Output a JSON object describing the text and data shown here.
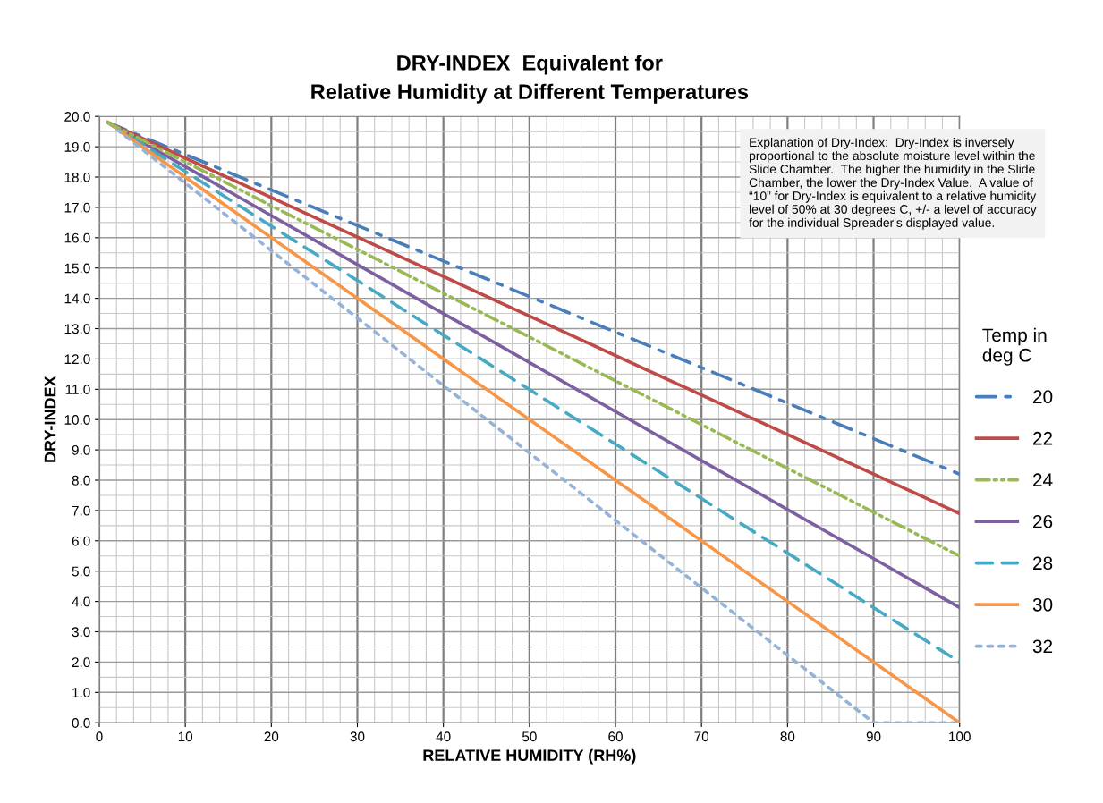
{
  "chart_data": {
    "type": "line",
    "title": "DRY-INDEX  Equivalent for\nRelative Humidity at Different Temperatures",
    "xlabel": "RELATIVE HUMIDITY (RH%)",
    "ylabel": "DRY-INDEX",
    "legend_title": "Temp in\ndeg C",
    "annotations": [
      "Explanation of Dry-Index:  Dry-Index is inversely proportional to the absolute moisture level within the Slide Chamber.  The higher the humidity in the Slide Chamber, the lower the Dry-Index Value.  A value of “10” for Dry-Index is equivalent to a relative humidity level of 50% at 30 degrees C, +/- a level of accuracy for the individual Spreader's displayed value."
    ],
    "series": [
      {
        "name": "20",
        "color": "#4a7ebb",
        "line_style": "dashdot",
        "x": [
          1,
          100
        ],
        "values": [
          19.8,
          8.2
        ]
      },
      {
        "name": "22",
        "color": "#be4b48",
        "line_style": "solid",
        "x": [
          1,
          100
        ],
        "values": [
          19.8,
          6.9
        ]
      },
      {
        "name": "24",
        "color": "#98b954",
        "line_style": "dashdotdot",
        "x": [
          1,
          100
        ],
        "values": [
          19.8,
          5.5
        ]
      },
      {
        "name": "26",
        "color": "#7d60a0",
        "line_style": "solid",
        "x": [
          1,
          100
        ],
        "values": [
          19.8,
          3.8
        ]
      },
      {
        "name": "28",
        "color": "#46aac5",
        "line_style": "dashed",
        "x": [
          1,
          100
        ],
        "values": [
          19.8,
          2.0
        ]
      },
      {
        "name": "30",
        "color": "#f79646",
        "line_style": "solid",
        "x": [
          1,
          100
        ],
        "values": [
          19.8,
          0.0
        ]
      },
      {
        "name": "32",
        "color": "#95b3d7",
        "line_style": "dotted",
        "x": [
          1,
          90,
          100
        ],
        "values": [
          19.8,
          0.0,
          0.0
        ]
      }
    ],
    "xlim": [
      0,
      100
    ],
    "xticks": [
      0,
      10,
      20,
      30,
      40,
      50,
      60,
      70,
      80,
      90,
      100
    ],
    "ylim": [
      0,
      20
    ],
    "yticks": [
      {
        "value": 0,
        "label": "0.0"
      },
      {
        "value": 1,
        "label": "1.0"
      },
      {
        "value": 2,
        "label": "2.0"
      },
      {
        "value": 3,
        "label": "3.0"
      },
      {
        "value": 4,
        "label": "4.0"
      },
      {
        "value": 5,
        "label": "5.0"
      },
      {
        "value": 6,
        "label": "6.0"
      },
      {
        "value": 7,
        "label": "7.0"
      },
      {
        "value": 8,
        "label": "8.0"
      },
      {
        "value": 9,
        "label": "9.0"
      },
      {
        "value": 10,
        "label": "10.0"
      },
      {
        "value": 11,
        "label": "11.0"
      },
      {
        "value": 12,
        "label": "12.0"
      },
      {
        "value": 13,
        "label": "13.0"
      },
      {
        "value": 14,
        "label": "14.0"
      },
      {
        "value": 15,
        "label": "15.0"
      },
      {
        "value": 16,
        "label": "16.0"
      },
      {
        "value": 17,
        "label": "17.0"
      },
      {
        "value": 18,
        "label": "18.0"
      },
      {
        "value": 19,
        "label": "19.0"
      },
      {
        "value": 20,
        "label": "20.0"
      }
    ],
    "grid": true,
    "legend": "right",
    "marker": "none"
  }
}
